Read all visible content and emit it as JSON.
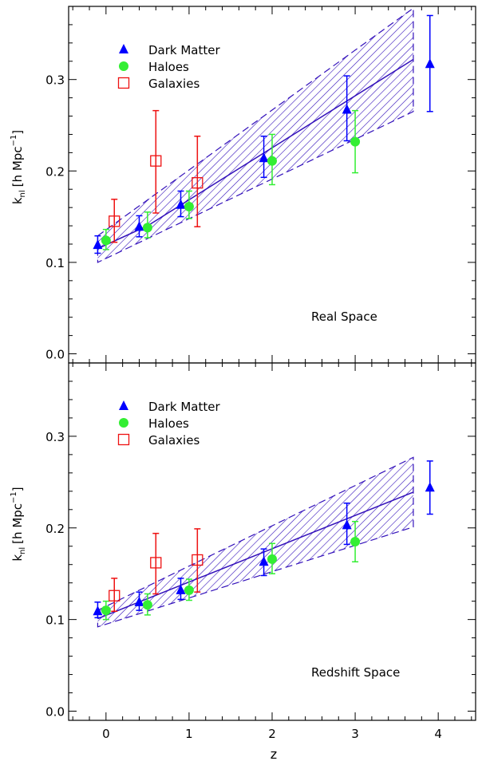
{
  "chart_data": [
    {
      "type": "scatter",
      "panel_label": "Real Space",
      "xlabel": "",
      "ylabel_main": "k",
      "ylabel_sub": "nl",
      "ylabel_unit": "[h Mpc",
      "ylabel_exp": "−1",
      "ylabel_close": "]",
      "xlim": [
        -0.45,
        4.45
      ],
      "ylim": [
        -0.01,
        0.38
      ],
      "x_ticks": [
        0,
        1,
        2,
        3,
        4
      ],
      "y_ticks": [
        0.0,
        0.1,
        0.2,
        0.3
      ],
      "y_tick_labels": [
        "0.0",
        "0.1",
        "0.2",
        "0.3"
      ],
      "legend": [
        {
          "label": "Dark Matter",
          "marker": "triangle",
          "color": "#0000ff"
        },
        {
          "label": "Haloes",
          "marker": "circle",
          "color": "#33ee33"
        },
        {
          "label": "Galaxies",
          "marker": "open-square",
          "color": "#ee1111"
        }
      ],
      "series": [
        {
          "name": "Dark Matter",
          "marker": "triangle",
          "color": "#0000ff",
          "x": [
            -0.1,
            0.4,
            0.9,
            1.9,
            2.9,
            3.9
          ],
          "y": [
            0.119,
            0.139,
            0.163,
            0.214,
            0.267,
            0.317
          ],
          "err_low": [
            0.11,
            0.128,
            0.15,
            0.193,
            0.233,
            0.265
          ],
          "err_high": [
            0.129,
            0.151,
            0.178,
            0.238,
            0.304,
            0.37
          ]
        },
        {
          "name": "Haloes",
          "marker": "circle",
          "color": "#33ee33",
          "x": [
            0.0,
            0.5,
            1.0,
            2.0,
            3.0
          ],
          "y": [
            0.124,
            0.138,
            0.161,
            0.211,
            0.232
          ],
          "err_low": [
            0.114,
            0.127,
            0.148,
            0.185,
            0.198
          ],
          "err_high": [
            0.136,
            0.155,
            0.178,
            0.24,
            0.266
          ]
        },
        {
          "name": "Galaxies",
          "marker": "open-square",
          "color": "#ee1111",
          "x": [
            0.1,
            0.6,
            1.1
          ],
          "y": [
            0.145,
            0.211,
            0.187
          ],
          "err_low": [
            0.122,
            0.154,
            0.139
          ],
          "err_high": [
            0.169,
            0.266,
            0.238
          ]
        }
      ],
      "model_line": {
        "color": "#3311bb",
        "x": [
          -0.1,
          0.5,
          3.7
        ],
        "y": [
          0.115,
          0.14,
          0.322
        ]
      },
      "model_band": {
        "color": "#3311bb",
        "x": [
          -0.1,
          3.7
        ],
        "upper": [
          0.129,
          0.378
        ],
        "lower": [
          0.1,
          0.265
        ]
      }
    },
    {
      "type": "scatter",
      "panel_label": "Redshift Space",
      "xlabel": "z",
      "ylabel_main": "k",
      "ylabel_sub": "nl",
      "ylabel_unit": "[h Mpc",
      "ylabel_exp": "−1",
      "ylabel_close": "]",
      "xlim": [
        -0.45,
        4.45
      ],
      "ylim": [
        -0.01,
        0.38
      ],
      "x_ticks": [
        0,
        1,
        2,
        3,
        4
      ],
      "x_tick_labels": [
        "0",
        "1",
        "2",
        "3",
        "4"
      ],
      "y_ticks": [
        0.0,
        0.1,
        0.2,
        0.3
      ],
      "y_tick_labels": [
        "0.0",
        "0.1",
        "0.2",
        "0.3"
      ],
      "legend": [
        {
          "label": "Dark Matter",
          "marker": "triangle",
          "color": "#0000ff"
        },
        {
          "label": "Haloes",
          "marker": "circle",
          "color": "#33ee33"
        },
        {
          "label": "Galaxies",
          "marker": "open-square",
          "color": "#ee1111"
        }
      ],
      "series": [
        {
          "name": "Dark Matter",
          "marker": "triangle",
          "color": "#0000ff",
          "x": [
            -0.1,
            0.4,
            0.9,
            1.9,
            2.9,
            3.9
          ],
          "y": [
            0.109,
            0.119,
            0.132,
            0.163,
            0.203,
            0.244
          ],
          "err_low": [
            0.102,
            0.11,
            0.122,
            0.148,
            0.182,
            0.215
          ],
          "err_high": [
            0.119,
            0.13,
            0.145,
            0.177,
            0.227,
            0.273
          ]
        },
        {
          "name": "Haloes",
          "marker": "circle",
          "color": "#33ee33",
          "x": [
            0.0,
            0.5,
            1.0,
            2.0,
            3.0
          ],
          "y": [
            0.11,
            0.116,
            0.132,
            0.166,
            0.185
          ],
          "err_low": [
            0.1,
            0.105,
            0.121,
            0.15,
            0.163
          ],
          "err_high": [
            0.12,
            0.128,
            0.144,
            0.183,
            0.207
          ]
        },
        {
          "name": "Galaxies",
          "marker": "open-square",
          "color": "#ee1111",
          "x": [
            0.1,
            0.6,
            1.1
          ],
          "y": [
            0.126,
            0.162,
            0.165
          ],
          "err_low": [
            0.109,
            0.128,
            0.13
          ],
          "err_high": [
            0.145,
            0.194,
            0.199
          ]
        }
      ],
      "model_line": {
        "color": "#3311bb",
        "x": [
          -0.1,
          3.7
        ],
        "y": [
          0.101,
          0.239
        ]
      },
      "model_band": {
        "color": "#3311bb",
        "x": [
          -0.1,
          3.7
        ],
        "upper": [
          0.11,
          0.277
        ],
        "lower": [
          0.092,
          0.201
        ]
      }
    }
  ]
}
